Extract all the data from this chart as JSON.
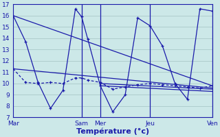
{
  "background_color": "#cce8e8",
  "grid_color": "#aac8c8",
  "line_color": "#1a1aaa",
  "xlabel": "Température (°c)",
  "ylim": [
    7,
    17
  ],
  "yticks": [
    7,
    8,
    9,
    10,
    11,
    12,
    13,
    14,
    15,
    16,
    17
  ],
  "xlim": [
    0,
    16
  ],
  "day_labels": [
    "Mar",
    "Sam",
    "Mer",
    "Jeu",
    "Ven"
  ],
  "day_positions": [
    0,
    5.5,
    7.0,
    11.0,
    16.0
  ],
  "vline_positions": [
    5.5,
    7.0,
    11.0,
    16.0
  ],
  "series_jagged": {
    "x": [
      0,
      1,
      2,
      3,
      4,
      5,
      5.5,
      6,
      7,
      8,
      9,
      10,
      11,
      12,
      13,
      14,
      15,
      16
    ],
    "y": [
      16,
      13.7,
      10.1,
      7.8,
      9.4,
      16.6,
      15.9,
      13.9,
      9.8,
      7.5,
      9.0,
      15.8,
      15.1,
      13.3,
      10.0,
      8.6,
      16.6,
      16.4
    ]
  },
  "series_flat": {
    "x": [
      0,
      1,
      2,
      3,
      4,
      5,
      5.5,
      6,
      7,
      8,
      9,
      10,
      11,
      12,
      13,
      14,
      15,
      16
    ],
    "y": [
      11.3,
      10.1,
      10.0,
      10.1,
      10.0,
      10.5,
      10.5,
      10.3,
      10.1,
      9.5,
      9.7,
      9.9,
      10.0,
      9.9,
      9.8,
      9.7,
      9.6,
      9.8
    ]
  },
  "trend_lines": [
    {
      "x": [
        0,
        16
      ],
      "y": [
        16,
        9.8
      ]
    },
    {
      "x": [
        0,
        16
      ],
      "y": [
        11.3,
        9.6
      ]
    },
    {
      "x": [
        7,
        16
      ],
      "y": [
        10.0,
        9.5
      ]
    },
    {
      "x": [
        7,
        16
      ],
      "y": [
        9.8,
        9.3
      ]
    }
  ]
}
